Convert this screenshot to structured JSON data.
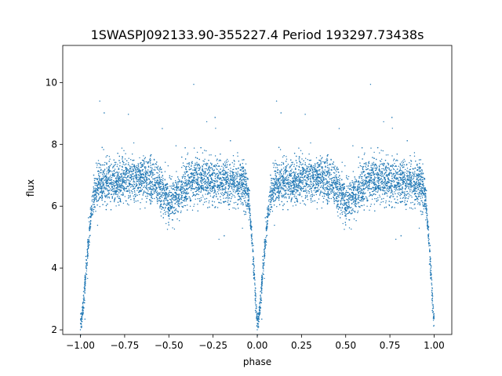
{
  "chart_data": {
    "type": "scatter",
    "title": "1SWASPJ092133.90-355227.4 Period 193297.73438s",
    "xlabel": "phase",
    "ylabel": "flux",
    "xlim": [
      -1.1,
      1.1
    ],
    "ylim": [
      1.85,
      11.2
    ],
    "xticks": [
      -1.0,
      -0.75,
      -0.5,
      -0.25,
      0.0,
      0.25,
      0.5,
      0.75,
      1.0
    ],
    "xtick_labels": [
      "−1.00",
      "−0.75",
      "−0.50",
      "−0.25",
      "0.00",
      "0.25",
      "0.50",
      "0.75",
      "1.00"
    ],
    "yticks": [
      2,
      4,
      6,
      8,
      10
    ],
    "ytick_labels": [
      "2",
      "4",
      "6",
      "8",
      "10"
    ],
    "grid": false,
    "marker_color": "#1f77b4",
    "profile": {
      "phase": [
        0.0,
        0.01,
        0.02,
        0.03,
        0.05,
        0.07,
        0.1,
        0.15,
        0.2,
        0.3,
        0.4,
        0.45,
        0.5,
        0.55,
        0.6,
        0.65,
        0.7,
        0.8,
        0.9,
        0.93,
        0.95,
        0.96,
        0.97,
        0.98,
        0.99,
        1.0
      ],
      "flux": [
        2.2,
        2.4,
        3.0,
        3.8,
        5.2,
        6.2,
        6.7,
        6.8,
        6.8,
        6.9,
        6.8,
        6.6,
        6.1,
        6.3,
        6.7,
        6.9,
        6.9,
        6.8,
        6.7,
        6.6,
        6.4,
        5.7,
        4.9,
        4.0,
        3.0,
        2.3
      ],
      "scatter_sigma": 0.35
    }
  }
}
